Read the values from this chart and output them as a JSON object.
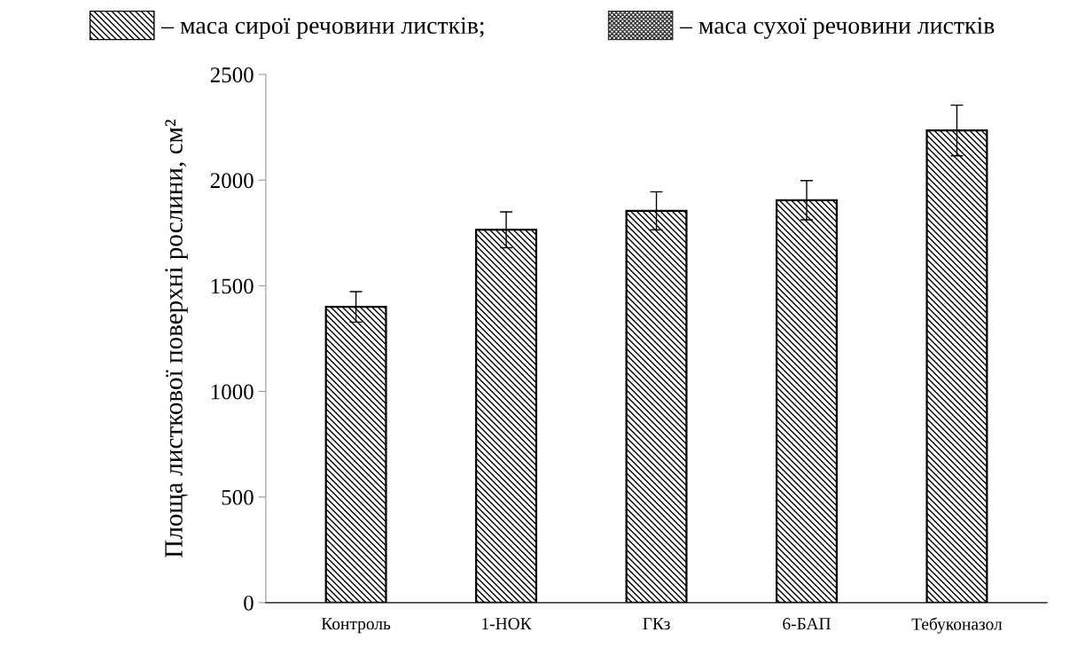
{
  "chart_data": {
    "type": "bar",
    "ylabel": "Площа листкової поверхні рослини, см²",
    "categories": [
      "Контроль",
      "1-НОК",
      "ГКз",
      "6-БАП",
      "Тебуконазол"
    ],
    "series": [
      {
        "name": "– маса сирої речовини листків;",
        "color": "#000000",
        "values": [
          1400,
          1765,
          1855,
          1905,
          2235
        ],
        "errors": [
          72,
          85,
          90,
          93,
          120
        ]
      },
      {
        "name": "– маса сухої речовини листків",
        "color": "#333333",
        "values": [
          null,
          null,
          null,
          null,
          null
        ]
      }
    ],
    "ylim": [
      0,
      2500
    ],
    "yticks": [
      0,
      500,
      1000,
      1500,
      2000,
      2500
    ],
    "grid": false,
    "legend": "top"
  }
}
